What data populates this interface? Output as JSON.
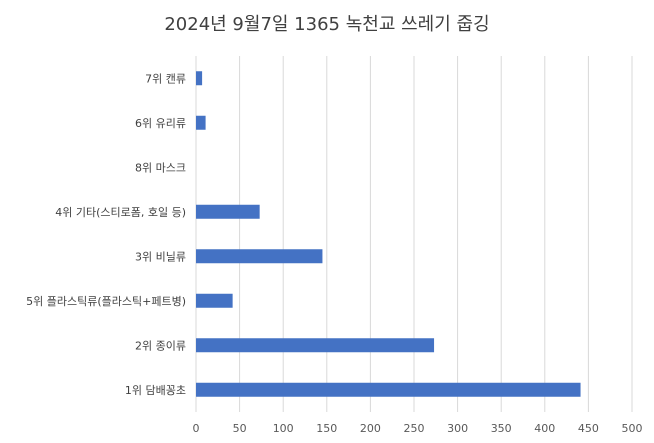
{
  "chart_data": {
    "type": "bar",
    "orientation": "horizontal",
    "title": "2024년 9월7일 1365 녹천교 쓰레기 줍깅",
    "xlabel": "",
    "ylabel": "",
    "categories": [
      "7위 캔류",
      "6위 유리류",
      "8위 마스크",
      "4위 기타(스티로폼, 호일 등)",
      "3위 비닐류",
      "5위 플라스틱류(플라스틱+페트병)",
      "2위 종이류",
      "1위 담배꽁초"
    ],
    "values": [
      7,
      11,
      0,
      73,
      145,
      42,
      273,
      441
    ],
    "xlim": [
      0,
      500
    ],
    "xticks": [
      "0",
      "50",
      "100",
      "150",
      "200",
      "250",
      "300",
      "350",
      "400",
      "450",
      "500"
    ],
    "grid": true,
    "legend": "none",
    "bar_color": "#4472C4",
    "grid_color": "#D9D9D9"
  }
}
